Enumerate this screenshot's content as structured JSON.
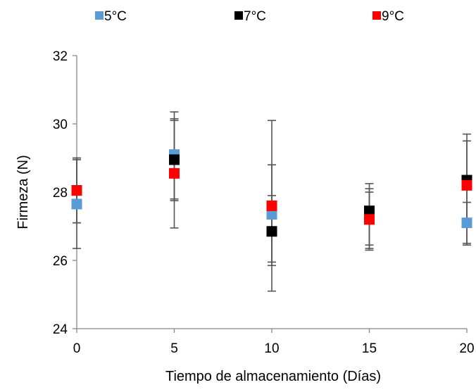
{
  "chart_data": {
    "type": "scatter",
    "title": "",
    "xlabel": "Tiempo de almacenamiento (Días)",
    "ylabel": "Firmeza (N)",
    "xlim": [
      0,
      20
    ],
    "ylim": [
      24,
      32
    ],
    "xticks": [
      "0",
      "5",
      "10",
      "15",
      "20"
    ],
    "yticks": [
      "24",
      "26",
      "28",
      "30",
      "32"
    ],
    "grid": false,
    "legend_position": "top",
    "x": [
      0,
      5,
      10,
      15,
      20
    ],
    "series": [
      {
        "name": "5°C",
        "color": "#5B9BD5",
        "values": [
          27.65,
          29.1,
          27.35,
          27.35,
          27.1
        ],
        "error_low": [
          26.35,
          27.8,
          25.95,
          26.35,
          26.5
        ],
        "error_high": [
          28.95,
          30.1,
          28.8,
          28.0,
          27.7
        ]
      },
      {
        "name": "7°C",
        "color": "#000000",
        "values": [
          28.05,
          28.95,
          26.85,
          27.45,
          28.35
        ],
        "error_low": [
          27.1,
          27.75,
          25.85,
          26.45,
          27.0
        ],
        "error_high": [
          29.0,
          30.15,
          27.9,
          28.25,
          29.5
        ]
      },
      {
        "name": "9°C",
        "color": "#FF0000",
        "values": [
          28.05,
          28.55,
          27.6,
          27.2,
          28.2
        ],
        "error_low": [
          27.1,
          26.95,
          25.1,
          26.3,
          26.45
        ],
        "error_high": [
          29.0,
          30.35,
          30.1,
          28.1,
          29.7
        ]
      }
    ]
  }
}
